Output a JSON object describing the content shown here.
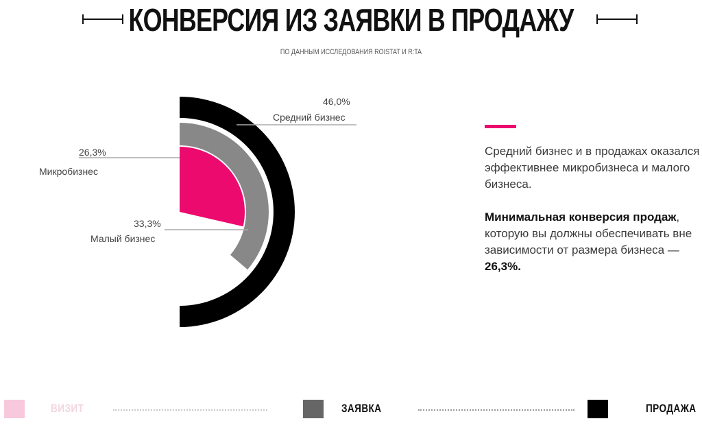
{
  "title": "КОНВЕРСИЯ ИЗ ЗАЯВКИ В ПРОДАЖУ",
  "subtitle": "ПО ДАННЫМ ИССЛЕДОВАНИЯ ROISTAT И R:TA",
  "chart_data": {
    "type": "radial-bar",
    "series": [
      {
        "name": "Средний бизнес",
        "value": 46.0,
        "label": "46,0%",
        "color": "#000000"
      },
      {
        "name": "Малый бизнес",
        "value": 33.3,
        "label": "33,3%",
        "color": "#888888"
      },
      {
        "name": "Микробизнес",
        "value": 26.3,
        "label": "26,3%",
        "color": "#ec0a6f"
      }
    ],
    "unit": "%"
  },
  "notes": {
    "p1": "Средний бизнес и в продажах оказался эффективнее микробизнеса и малого бизнеса.",
    "p2_bold": "Минимальная конверсия продаж",
    "p2_text": ", которую вы должны обеспечивать вне зависимости от размера бизнеса — ",
    "p2_value": "26,3%."
  },
  "legend": [
    {
      "label": "ВИЗИТ",
      "color": "#f8c9dc",
      "text_color": "#f2d6e2"
    },
    {
      "label": "ЗАЯВКА",
      "color": "#666666",
      "text_color": "#111111"
    },
    {
      "label": "ПРОДАЖА",
      "color": "#000000",
      "text_color": "#111111"
    }
  ]
}
